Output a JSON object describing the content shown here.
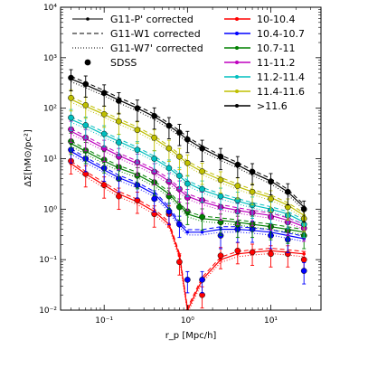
{
  "chart_data": {
    "type": "line",
    "xlabel": "r_p [Mpc/h]",
    "ylabel": "ΔΣ[hM⊙/pc²]",
    "xscale": "log",
    "yscale": "log",
    "xlim": [
      0.03,
      40
    ],
    "ylim": [
      0.01,
      10000
    ],
    "grid": false,
    "x_ticks": [
      {
        "v": 0.1,
        "label": "10⁻¹"
      },
      {
        "v": 1,
        "label": "10⁰"
      },
      {
        "v": 10,
        "label": "10¹"
      }
    ],
    "y_ticks": [
      {
        "v": 0.01,
        "label": "10⁻²"
      },
      {
        "v": 0.1,
        "label": "10⁻¹"
      },
      {
        "v": 1,
        "label": "10⁰"
      },
      {
        "v": 10,
        "label": "10¹"
      },
      {
        "v": 100,
        "label": "10²"
      },
      {
        "v": 1000,
        "label": "10³"
      },
      {
        "v": 10000,
        "label": "10⁴"
      }
    ],
    "legend_styles": [
      {
        "label": "G11-P' corrected",
        "style": "solid-marker"
      },
      {
        "label": "G11-W1 corrected",
        "style": "dashed"
      },
      {
        "label": "G11-W7' corrected",
        "style": "dotted"
      },
      {
        "label": "SDSS",
        "style": "dot"
      }
    ],
    "legend_placement": "top",
    "series": [
      {
        "name": "10-10.4",
        "color": "#ff0000",
        "x": [
          0.04,
          0.06,
          0.1,
          0.15,
          0.25,
          0.4,
          0.6,
          0.8,
          1.0,
          1.5,
          2.5,
          4,
          6,
          10,
          16,
          25
        ],
        "model": [
          8.0,
          5.0,
          3.0,
          2.0,
          1.4,
          0.9,
          0.5,
          0.12,
          0.01,
          0.04,
          0.1,
          0.13,
          0.14,
          0.15,
          0.14,
          0.13
        ],
        "sdss": [
          9.0,
          5.0,
          3.0,
          1.8,
          1.5,
          0.8,
          0.8,
          0.09,
          null,
          0.02,
          0.12,
          0.15,
          0.14,
          0.13,
          0.13,
          0.1
        ]
      },
      {
        "name": "10.4-10.7",
        "color": "#0000ff",
        "x": [
          0.04,
          0.06,
          0.1,
          0.15,
          0.25,
          0.4,
          0.6,
          0.8,
          1.0,
          1.5,
          2.5,
          4,
          6,
          10,
          16,
          25
        ],
        "model": [
          14.0,
          9.5,
          6.0,
          4.2,
          3.0,
          2.0,
          1.0,
          0.5,
          0.35,
          0.35,
          0.4,
          0.4,
          0.38,
          0.35,
          0.3,
          0.26
        ],
        "sdss": [
          15.0,
          10.0,
          6.5,
          4.0,
          3.0,
          1.6,
          0.9,
          0.5,
          0.04,
          0.04,
          0.3,
          0.4,
          0.4,
          0.3,
          0.25,
          0.06
        ]
      },
      {
        "name": "10.7-11",
        "color": "#008000",
        "x": [
          0.04,
          0.06,
          0.1,
          0.15,
          0.25,
          0.4,
          0.6,
          0.8,
          1.0,
          1.5,
          2.5,
          4,
          6,
          10,
          16,
          25
        ],
        "model": [
          20.0,
          14.0,
          9.0,
          6.5,
          4.8,
          3.2,
          2.0,
          1.2,
          0.8,
          0.65,
          0.6,
          0.55,
          0.5,
          0.45,
          0.4,
          0.35
        ],
        "sdss": [
          22.0,
          14.5,
          9.5,
          6.8,
          4.6,
          3.4,
          1.8,
          1.1,
          0.9,
          0.7,
          0.55,
          0.5,
          0.5,
          0.45,
          0.38,
          0.3
        ]
      },
      {
        "name": "11-11.2",
        "color": "#bf00bf",
        "x": [
          0.04,
          0.06,
          0.1,
          0.15,
          0.25,
          0.4,
          0.6,
          0.8,
          1.0,
          1.5,
          2.5,
          4,
          6,
          10,
          16,
          25
        ],
        "model": [
          35.0,
          25.0,
          16.0,
          11.5,
          8.0,
          5.5,
          3.6,
          2.4,
          1.8,
          1.4,
          1.1,
          0.95,
          0.85,
          0.75,
          0.6,
          0.45
        ],
        "sdss": [
          38.0,
          26.0,
          16.0,
          11.0,
          8.5,
          5.5,
          3.5,
          2.5,
          1.7,
          1.5,
          1.1,
          0.9,
          0.85,
          0.7,
          0.55,
          0.42
        ]
      },
      {
        "name": "11.2-11.4",
        "color": "#00bfbf",
        "x": [
          0.04,
          0.06,
          0.1,
          0.15,
          0.25,
          0.4,
          0.6,
          0.8,
          1.0,
          1.5,
          2.5,
          4,
          6,
          10,
          16,
          25
        ],
        "model": [
          60.0,
          45.0,
          30.0,
          22.0,
          15.0,
          10.0,
          6.5,
          4.5,
          3.3,
          2.4,
          1.8,
          1.45,
          1.2,
          1.0,
          0.8,
          0.55
        ],
        "sdss": [
          65.0,
          46.0,
          31.0,
          21.0,
          15.0,
          10.0,
          6.5,
          4.6,
          3.2,
          2.5,
          1.8,
          1.5,
          1.2,
          0.95,
          0.75,
          0.5
        ]
      },
      {
        "name": "11.4-11.6",
        "color": "#bfbf00",
        "x": [
          0.04,
          0.06,
          0.1,
          0.15,
          0.25,
          0.4,
          0.6,
          0.8,
          1.0,
          1.5,
          2.5,
          4,
          6,
          10,
          16,
          25
        ],
        "model": [
          150.0,
          110.0,
          75.0,
          55.0,
          38.0,
          25.0,
          16.0,
          11.0,
          8.0,
          5.5,
          3.8,
          2.8,
          2.2,
          1.7,
          1.2,
          0.75
        ],
        "sdss": [
          160.0,
          115.0,
          76.0,
          55.0,
          37.0,
          26.0,
          16.0,
          11.0,
          8.2,
          5.6,
          3.8,
          2.9,
          2.2,
          1.6,
          1.1,
          0.65
        ]
      },
      {
        "name": ">11.6",
        "color": "#000000",
        "x": [
          0.04,
          0.06,
          0.1,
          0.15,
          0.25,
          0.4,
          0.6,
          0.8,
          1.0,
          1.5,
          2.5,
          4,
          6,
          10,
          16,
          25
        ],
        "model": [
          380.0,
          290.0,
          200.0,
          145.0,
          100.0,
          68.0,
          45.0,
          32.0,
          24.0,
          16.0,
          10.5,
          7.5,
          5.3,
          3.6,
          2.2,
          1.1
        ],
        "sdss": [
          400.0,
          300.0,
          200.0,
          140.0,
          100.0,
          70.0,
          45.0,
          33.0,
          24.0,
          16.0,
          11.0,
          7.6,
          5.5,
          3.5,
          2.2,
          1.0
        ]
      }
    ]
  }
}
